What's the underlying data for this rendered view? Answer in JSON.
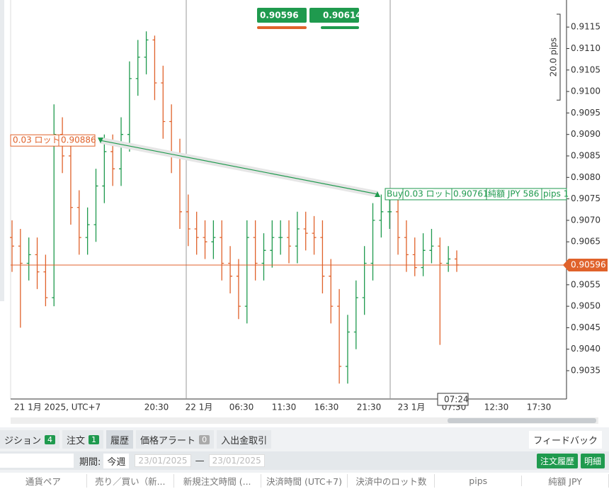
{
  "chart_data": {
    "type": "ohlc",
    "open": [
      0.9066,
      0.9064,
      0.906,
      0.9062,
      0.9058,
      0.9052,
      0.909,
      0.9085,
      0.9073,
      0.9066,
      0.9069,
      0.9078,
      0.9086,
      0.9082,
      0.909,
      0.9103,
      0.9108,
      0.9112,
      0.9102,
      0.9093,
      0.9085,
      0.9072,
      0.9068,
      0.9066,
      0.9065,
      0.9066,
      0.906,
      0.9057,
      0.905,
      0.9066,
      0.906,
      0.9063,
      0.9066,
      0.9066,
      0.9064,
      0.9068,
      0.9067,
      0.9066,
      0.9057,
      0.905,
      0.9036,
      0.9044,
      0.9052,
      0.906,
      0.907,
      0.9072,
      0.9072,
      0.9066,
      0.9062,
      0.9059,
      0.9063,
      0.9064,
      0.906,
      0.9061
    ],
    "high": [
      0.907,
      0.9068,
      0.9066,
      0.9066,
      0.9062,
      0.9097,
      0.9094,
      0.9089,
      0.9077,
      0.9073,
      0.9082,
      0.909,
      0.909,
      0.9094,
      0.9107,
      0.9112,
      0.9114,
      0.9113,
      0.9106,
      0.9097,
      0.9089,
      0.9076,
      0.9072,
      0.907,
      0.907,
      0.907,
      0.9064,
      0.9061,
      0.907,
      0.907,
      0.9067,
      0.907,
      0.907,
      0.907,
      0.9072,
      0.9072,
      0.9071,
      0.907,
      0.9061,
      0.9054,
      0.9048,
      0.9056,
      0.9064,
      0.9074,
      0.9076,
      0.9076,
      0.9076,
      0.907,
      0.9066,
      0.9067,
      0.9068,
      0.9066,
      0.9064,
      0.9063
    ],
    "low": [
      0.9058,
      0.9045,
      0.9056,
      0.9054,
      0.905,
      0.905,
      0.9081,
      0.9069,
      0.9062,
      0.9062,
      0.9065,
      0.9074,
      0.9078,
      0.9078,
      0.9086,
      0.9099,
      0.9104,
      0.9098,
      0.9089,
      0.9081,
      0.9068,
      0.9064,
      0.9062,
      0.9061,
      0.9061,
      0.9056,
      0.9053,
      0.9047,
      0.9046,
      0.9056,
      0.9056,
      0.9059,
      0.9062,
      0.906,
      0.906,
      0.9063,
      0.9062,
      0.9053,
      0.9046,
      0.9032,
      0.9032,
      0.904,
      0.9048,
      0.9056,
      0.9066,
      0.9068,
      0.9062,
      0.9058,
      0.9057,
      0.9057,
      0.906,
      0.9041,
      0.9058,
      0.9058
    ],
    "close": [
      0.9064,
      0.906,
      0.9062,
      0.9058,
      0.9052,
      0.909,
      0.9085,
      0.9073,
      0.9066,
      0.9069,
      0.9078,
      0.9086,
      0.9082,
      0.909,
      0.9103,
      0.9108,
      0.9112,
      0.9102,
      0.9093,
      0.9085,
      0.9072,
      0.9068,
      0.9066,
      0.9065,
      0.9066,
      0.906,
      0.9057,
      0.905,
      0.9066,
      0.906,
      0.9063,
      0.9066,
      0.9066,
      0.9064,
      0.9068,
      0.9067,
      0.9066,
      0.9057,
      0.905,
      0.9036,
      0.9044,
      0.9052,
      0.906,
      0.907,
      0.9072,
      0.9072,
      0.9066,
      0.9062,
      0.9059,
      0.9063,
      0.9064,
      0.906,
      0.9061,
      0.90596
    ],
    "up_color": "#1f9a4e",
    "down_color": "#e0622b",
    "ylim": [
      0.90289,
      0.91213
    ],
    "yticks": [
      0.9035,
      {
        "value": 0.904,
        "label": "0.9040"
      },
      0.9045,
      {
        "value": 0.905,
        "label": "0.9050"
      },
      0.9055,
      {
        "value": 0.906,
        "label": "0.9060"
      },
      0.9065,
      {
        "value": 0.907,
        "label": "0.9070"
      },
      0.9075,
      {
        "value": 0.908,
        "label": "0.9080"
      },
      0.9085,
      {
        "value": 0.909,
        "label": "0.9090"
      },
      0.9095,
      {
        "value": 0.91,
        "label": "0.9100"
      },
      0.9105,
      {
        "value": 0.911,
        "label": "0.9110"
      },
      0.9115
    ],
    "x_labels": [
      "21 1月 2025, UTC+7",
      "20:30",
      "22 1月",
      "06:30",
      "11:30",
      "16:30",
      "21:30",
      "23 1月",
      "07:30",
      "12:30",
      "17:30"
    ],
    "current_price": 0.90596,
    "sell_price": 0.90596,
    "buy_price": 0.90614,
    "range_label": "20.0 pips",
    "range_high": 0.9118,
    "range_low": 0.9098,
    "time_marker": "07:24",
    "trade": {
      "lot_label": "0.03 ロット",
      "open_price": 0.90886,
      "side": "Buy",
      "close_price": 0.90761,
      "net_label": "純額 JPY 586",
      "pips_label": "pips 1"
    }
  },
  "panel": {
    "tabs": [
      {
        "label": "ジション",
        "badge": "4"
      },
      {
        "label": "注文",
        "badge": "1"
      },
      {
        "label": "履歴"
      },
      {
        "label": "価格アラート",
        "badge": "0"
      },
      {
        "label": "入出金取引"
      }
    ],
    "feedback": "フィードバック",
    "period_label": "期間:",
    "period_value": "今週",
    "date_from": "23/01/2025",
    "dash": "—",
    "date_to": "23/01/2025",
    "buttons": [
      "注文履歴",
      "明細"
    ],
    "columns": [
      "通貨ペア",
      "売り／買い（新...",
      "新規注文時間 (...",
      "決済時間 (UTC+7)",
      "決済中のロット数",
      "pips",
      "純額 JPY"
    ]
  }
}
